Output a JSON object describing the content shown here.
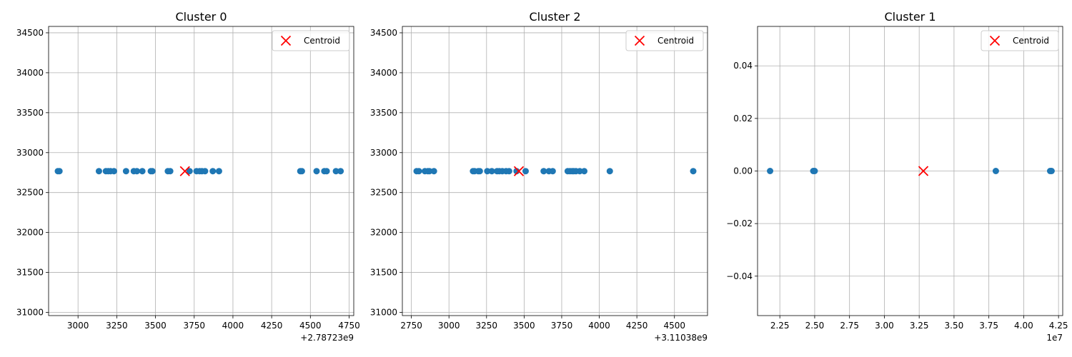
{
  "chart_data": [
    {
      "type": "scatter",
      "title": "Cluster 0",
      "x_offset_label": "+2.78723e9",
      "xlim": [
        2810,
        4780
      ],
      "ylim": [
        30960,
        34580
      ],
      "xticks": [
        3000,
        3250,
        3500,
        3750,
        4000,
        4250,
        4500,
        4750
      ],
      "xtick_labels": [
        "3000",
        "3250",
        "3500",
        "3750",
        "4000",
        "4250",
        "4500",
        "4750"
      ],
      "yticks": [
        31000,
        31500,
        32000,
        32500,
        33000,
        33500,
        34000,
        34500
      ],
      "ytick_labels": [
        "31000",
        "31500",
        "32000",
        "32500",
        "33000",
        "33500",
        "34000",
        "34500"
      ],
      "grid": true,
      "legend": {
        "position": "top-right",
        "label": "Centroid"
      },
      "series": [
        {
          "color": "#1f77b4",
          "x": [
            2870,
            2880,
            3135,
            3180,
            3195,
            3210,
            3232,
            3310,
            3360,
            3380,
            3415,
            3470,
            3480,
            3580,
            3595,
            3720,
            3765,
            3785,
            3800,
            3820,
            3870,
            3910,
            4435,
            4445,
            4540,
            4590,
            4605,
            4665,
            4695
          ],
          "y": [
            32768,
            32768,
            32768,
            32768,
            32768,
            32768,
            32768,
            32768,
            32768,
            32768,
            32768,
            32768,
            32768,
            32768,
            32768,
            32768,
            32768,
            32768,
            32768,
            32768,
            32768,
            32768,
            32768,
            32768,
            32768,
            32768,
            32768,
            32768,
            32768
          ]
        }
      ],
      "centroid": {
        "x": 3690,
        "y": 32768,
        "color": "#ff0000"
      }
    },
    {
      "type": "scatter",
      "title": "Cluster 2",
      "x_offset_label": "+3.11038e9",
      "xlim": [
        2690,
        4720
      ],
      "ylim": [
        30960,
        34580
      ],
      "xticks": [
        2750,
        3000,
        3250,
        3500,
        3750,
        4000,
        4250,
        4500
      ],
      "xtick_labels": [
        "2750",
        "3000",
        "3250",
        "3500",
        "3750",
        "4000",
        "4250",
        "4500"
      ],
      "yticks": [
        31000,
        31500,
        32000,
        32500,
        33000,
        33500,
        34000,
        34500
      ],
      "ytick_labels": [
        "31000",
        "31500",
        "32000",
        "32500",
        "33000",
        "33500",
        "34000",
        "34500"
      ],
      "grid": true,
      "legend": {
        "position": "top-right",
        "label": "Centroid"
      },
      "series": [
        {
          "color": "#1f77b4",
          "x": [
            2785,
            2800,
            2840,
            2860,
            2870,
            2900,
            3160,
            3170,
            3195,
            3205,
            3255,
            3285,
            3320,
            3335,
            3355,
            3380,
            3400,
            3450,
            3510,
            3630,
            3665,
            3690,
            3790,
            3805,
            3820,
            3830,
            3845,
            3870,
            3900,
            4070,
            4625
          ],
          "y": [
            32768,
            32768,
            32768,
            32768,
            32768,
            32768,
            32768,
            32768,
            32768,
            32768,
            32768,
            32768,
            32768,
            32768,
            32768,
            32768,
            32768,
            32768,
            32768,
            32768,
            32768,
            32768,
            32768,
            32768,
            32768,
            32768,
            32768,
            32768,
            32768,
            32768,
            32768
          ]
        }
      ],
      "centroid": {
        "x": 3465,
        "y": 32768,
        "color": "#ff0000"
      }
    },
    {
      "type": "scatter",
      "title": "Cluster 1",
      "x_exponent_label": "1e7",
      "xlim": [
        2.09,
        4.28
      ],
      "ylim": [
        -0.055,
        0.055
      ],
      "xticks": [
        2.25,
        2.5,
        2.75,
        3.0,
        3.25,
        3.5,
        3.75,
        4.0,
        4.25
      ],
      "xtick_labels": [
        "2.25",
        "2.50",
        "2.75",
        "3.00",
        "3.25",
        "3.50",
        "3.75",
        "4.00",
        "4.25"
      ],
      "yticks": [
        -0.04,
        -0.02,
        0.0,
        0.02,
        0.04
      ],
      "ytick_labels": [
        "−0.04",
        "−0.02",
        "0.00",
        "0.02",
        "0.04"
      ],
      "grid": true,
      "legend": {
        "position": "top-right",
        "label": "Centroid"
      },
      "series": [
        {
          "color": "#1f77b4",
          "x": [
            2.18,
            2.49,
            2.5,
            3.8,
            4.19,
            4.2
          ],
          "y": [
            0,
            0,
            0,
            0,
            0,
            0
          ]
        }
      ],
      "centroid": {
        "x": 3.28,
        "y": 0,
        "color": "#ff0000"
      }
    }
  ]
}
